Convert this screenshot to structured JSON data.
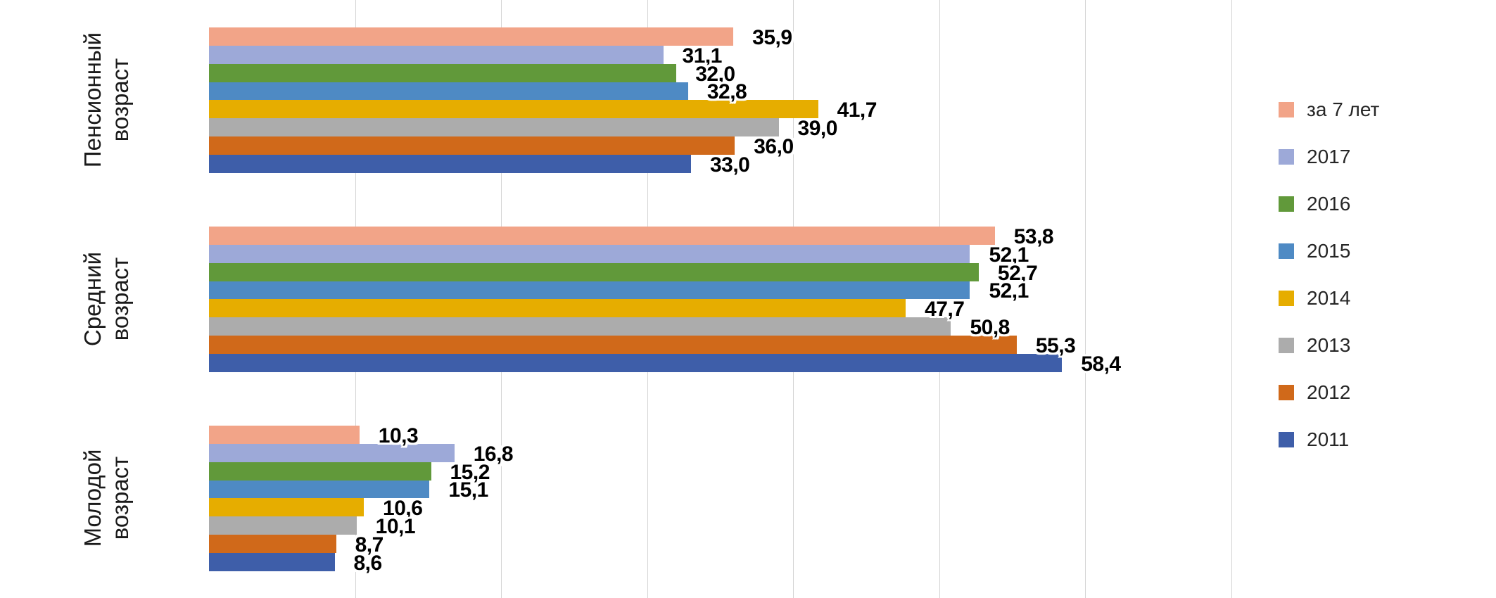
{
  "chart_data": {
    "type": "bar",
    "orientation": "horizontal",
    "title": "",
    "xlabel": "",
    "ylabel": "",
    "xlim": [
      0,
      70
    ],
    "gridline_interval": 10,
    "grid": true,
    "legend_position": "right",
    "decimal_separator": ",",
    "categories": [
      "Пенсионный возраст",
      "Средний возраст",
      "Молодой возраст"
    ],
    "category_label_lines": [
      "Пенсионный\nвозраст",
      "Средний\nвозраст",
      "Молодой\nвозраст"
    ],
    "series": [
      {
        "name": "за 7 лет",
        "color": "#F2A488",
        "values": [
          35.9,
          53.8,
          10.3
        ]
      },
      {
        "name": "2017",
        "color": "#9DA9D8",
        "values": [
          31.1,
          52.1,
          16.8
        ]
      },
      {
        "name": "2016",
        "color": "#61993A",
        "values": [
          32.0,
          52.7,
          15.2
        ]
      },
      {
        "name": "2015",
        "color": "#4E8AC4",
        "values": [
          32.8,
          52.1,
          15.1
        ]
      },
      {
        "name": "2014",
        "color": "#E6AD00",
        "values": [
          41.7,
          47.7,
          10.6
        ]
      },
      {
        "name": "2013",
        "color": "#ACACAC",
        "values": [
          39.0,
          50.8,
          10.1
        ]
      },
      {
        "name": "2012",
        "color": "#D0691A",
        "values": [
          36.0,
          55.3,
          8.7
        ]
      },
      {
        "name": "2011",
        "color": "#3E5EA9",
        "values": [
          33.0,
          58.4,
          8.6
        ]
      }
    ],
    "colors": {
      "gridline": "#d4d4d4",
      "value_label": "#000000",
      "value_label_halo": "#ffffff",
      "category_label": "#1a1a1a",
      "legend_text": "#262626",
      "background": "#ffffff"
    }
  }
}
